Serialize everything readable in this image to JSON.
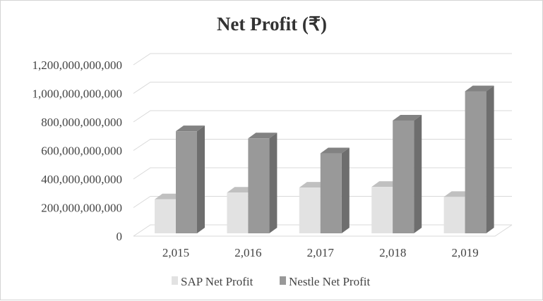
{
  "chart_data": {
    "type": "bar",
    "title": "Net Profit (₹)",
    "categories": [
      "2,015",
      "2,016",
      "2,017",
      "2,018",
      "2,019"
    ],
    "series": [
      {
        "name": "SAP Net Profit",
        "values": [
          258000000000,
          305000000000,
          340000000000,
          345000000000,
          275000000000
        ],
        "color": "#e2e2e2"
      },
      {
        "name": "Nestle Net Profit",
        "values": [
          735000000000,
          685000000000,
          580000000000,
          810000000000,
          1015000000000
        ],
        "color": "#999999"
      }
    ],
    "y_ticks": [
      "0",
      "200,000,000,000",
      "400,000,000,000",
      "600,000,000,000",
      "800,000,000,000",
      "1,000,000,000,000",
      "1,200,000,000,000"
    ],
    "ylim": [
      0,
      1200000000000
    ],
    "grid": true,
    "legend_position": "bottom",
    "style": "3d-clustered-column"
  }
}
